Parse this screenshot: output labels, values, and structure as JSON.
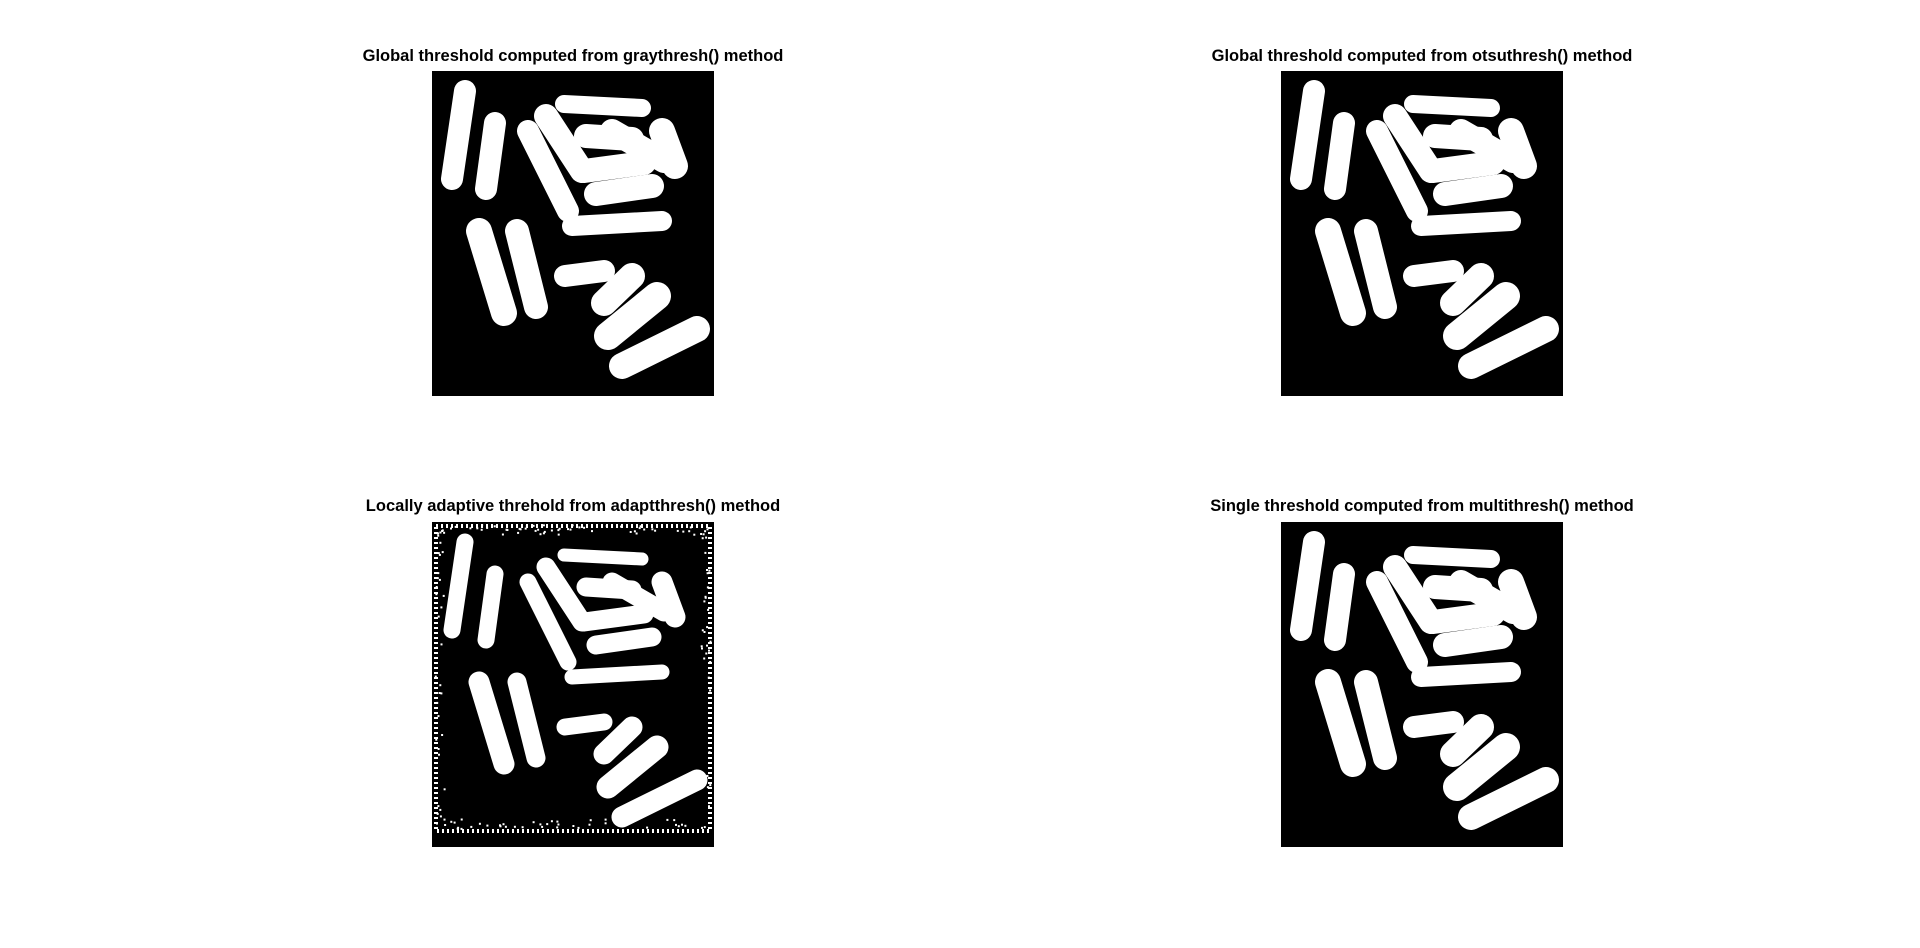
{
  "figure": {
    "background_color": "#ffffff",
    "image_background_color": "#000000",
    "foreground_color": "#ffffff",
    "panels": [
      {
        "title": "Global threshold computed from graythresh() method",
        "variant": "global-graythresh"
      },
      {
        "title": "Global threshold computed from otsuthresh() method",
        "variant": "global-otsuthresh"
      },
      {
        "title": "Locally adaptive threhold from adaptthresh() method",
        "variant": "adaptive"
      },
      {
        "title": "Single threshold computed from multithresh() method",
        "variant": "multithresh"
      }
    ]
  }
}
